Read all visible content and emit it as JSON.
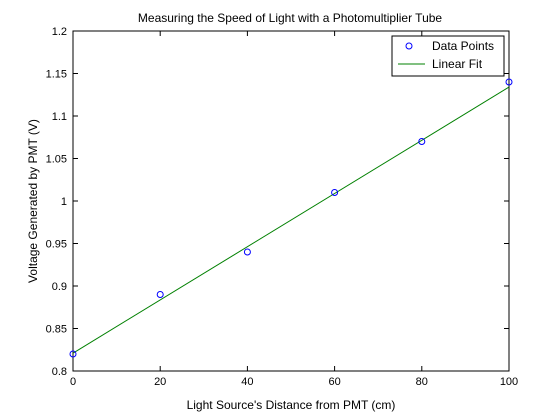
{
  "chart_data": {
    "type": "scatter",
    "title": "Measuring the Speed of Light with a Photomultiplier Tube",
    "xlabel": "Light Source's Distance from PMT (cm)",
    "ylabel": "Voltage Generated by PMT (V)",
    "xlim": [
      0,
      100
    ],
    "ylim": [
      0.8,
      1.2
    ],
    "x_ticks": [
      "0",
      "20",
      "40",
      "60",
      "80",
      "100"
    ],
    "y_ticks": [
      "0.8",
      "0.85",
      "0.9",
      "0.95",
      "1",
      "1.05",
      "1.1",
      "1.15",
      "1.2"
    ],
    "grid": false,
    "legend_position": "top-right",
    "series": [
      {
        "name": "Data Points",
        "kind": "markers",
        "marker": "circle",
        "color": "#0000ff",
        "x": [
          0,
          20,
          40,
          60,
          80,
          100
        ],
        "y": [
          0.82,
          0.89,
          0.94,
          1.01,
          1.07,
          1.14
        ]
      },
      {
        "name": "Linear Fit",
        "kind": "line",
        "color": "#008000",
        "x": [
          0,
          100
        ],
        "y": [
          0.821,
          1.134
        ]
      }
    ]
  }
}
